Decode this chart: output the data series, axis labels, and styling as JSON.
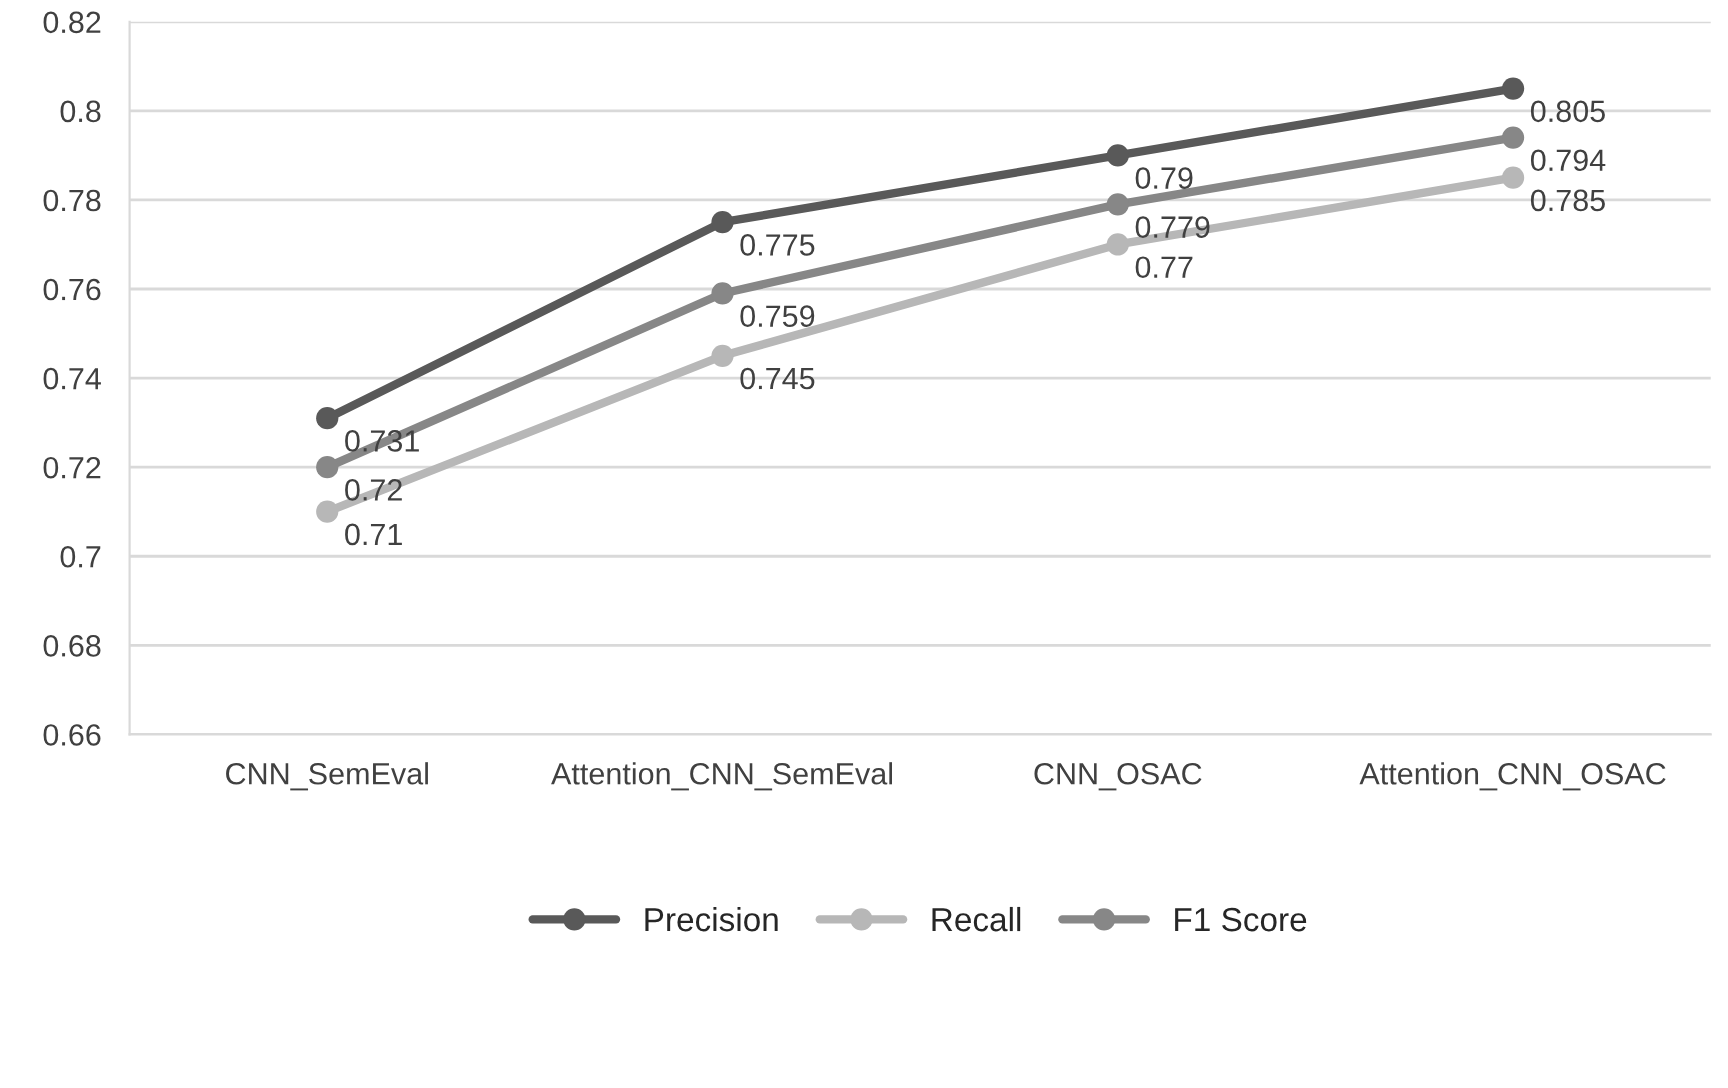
{
  "chart_data": {
    "type": "line",
    "categories": [
      "CNN_SemEval",
      "Attention_CNN_SemEval",
      "CNN_OSAC",
      "Attention_CNN_OSAC"
    ],
    "series": [
      {
        "name": "Precision",
        "color": "#595959",
        "values": [
          0.731,
          0.775,
          0.79,
          0.805
        ]
      },
      {
        "name": "Recall",
        "color": "#b7b7b7",
        "values": [
          0.71,
          0.745,
          0.77,
          0.785
        ]
      },
      {
        "name": "F1 Score",
        "color": "#878787",
        "values": [
          0.72,
          0.759,
          0.779,
          0.794
        ]
      }
    ],
    "ylim": [
      0.66,
      0.82
    ],
    "yticks": [
      0.66,
      0.68,
      0.7,
      0.72,
      0.74,
      0.76,
      0.78,
      0.8,
      0.82
    ],
    "grid": "y",
    "legend": "bottom",
    "marker": "circle",
    "line_style": "solid",
    "data_labels": true
  }
}
